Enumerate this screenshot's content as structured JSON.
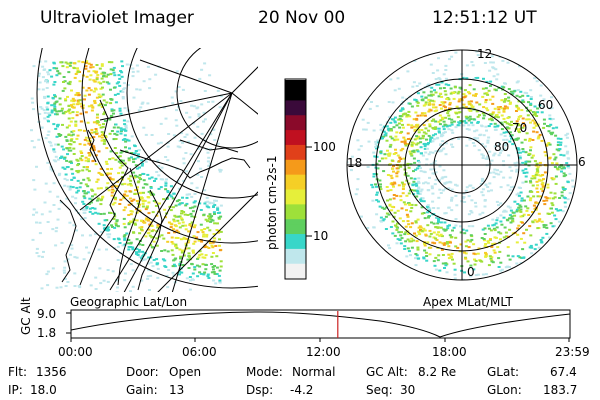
{
  "header": {
    "instrument": "Ultraviolet Imager",
    "date": "20 Nov 00",
    "time": "12:51:12 UT"
  },
  "colorbar": {
    "unit_label": "photon cm-2s-1",
    "ticks": [
      "100",
      "10"
    ]
  },
  "left_panel": {
    "label": "Geographic Lat/Lon"
  },
  "right_panel": {
    "label": "Apex MLat/MLT",
    "mlt_labels": [
      "12",
      "18",
      "6",
      "0"
    ],
    "mlat_labels": [
      "60",
      "70",
      "80"
    ]
  },
  "timeline": {
    "ylabel": "GC Alt",
    "y_ticks": [
      "9.0",
      "1.8"
    ],
    "x_ticks": [
      "00:00",
      "06:00",
      "12:00",
      "18:00",
      "23:59"
    ],
    "current_marker_time": "12:51"
  },
  "info": {
    "flt": {
      "label": "Flt:",
      "value": "1356"
    },
    "ip": {
      "label": "IP:",
      "value": "18.0"
    },
    "door": {
      "label": "Door:",
      "value": "Open"
    },
    "gain": {
      "label": "Gain:",
      "value": "13"
    },
    "mode": {
      "label": "Mode:",
      "value": "Normal"
    },
    "dsp": {
      "label": "Dsp:",
      "value": "-4.2"
    },
    "gc_alt": {
      "label": "GC Alt:",
      "value": "8.2 Re"
    },
    "seq": {
      "label": "Seq:",
      "value": "30"
    },
    "glat": {
      "label": "GLat:",
      "value": "67.4"
    },
    "glon": {
      "label": "GLon:",
      "value": "183.7"
    }
  },
  "colors": {
    "marker": "#cc2222",
    "scale": [
      "#f2f2f2",
      "#bfe7ec",
      "#38d6c9",
      "#5fcf5f",
      "#9ee03a",
      "#e6ef3a",
      "#f5cf26",
      "#f59a1a",
      "#e0401a",
      "#c01020",
      "#8a0a2a",
      "#3a0a3a",
      "#000000"
    ]
  }
}
